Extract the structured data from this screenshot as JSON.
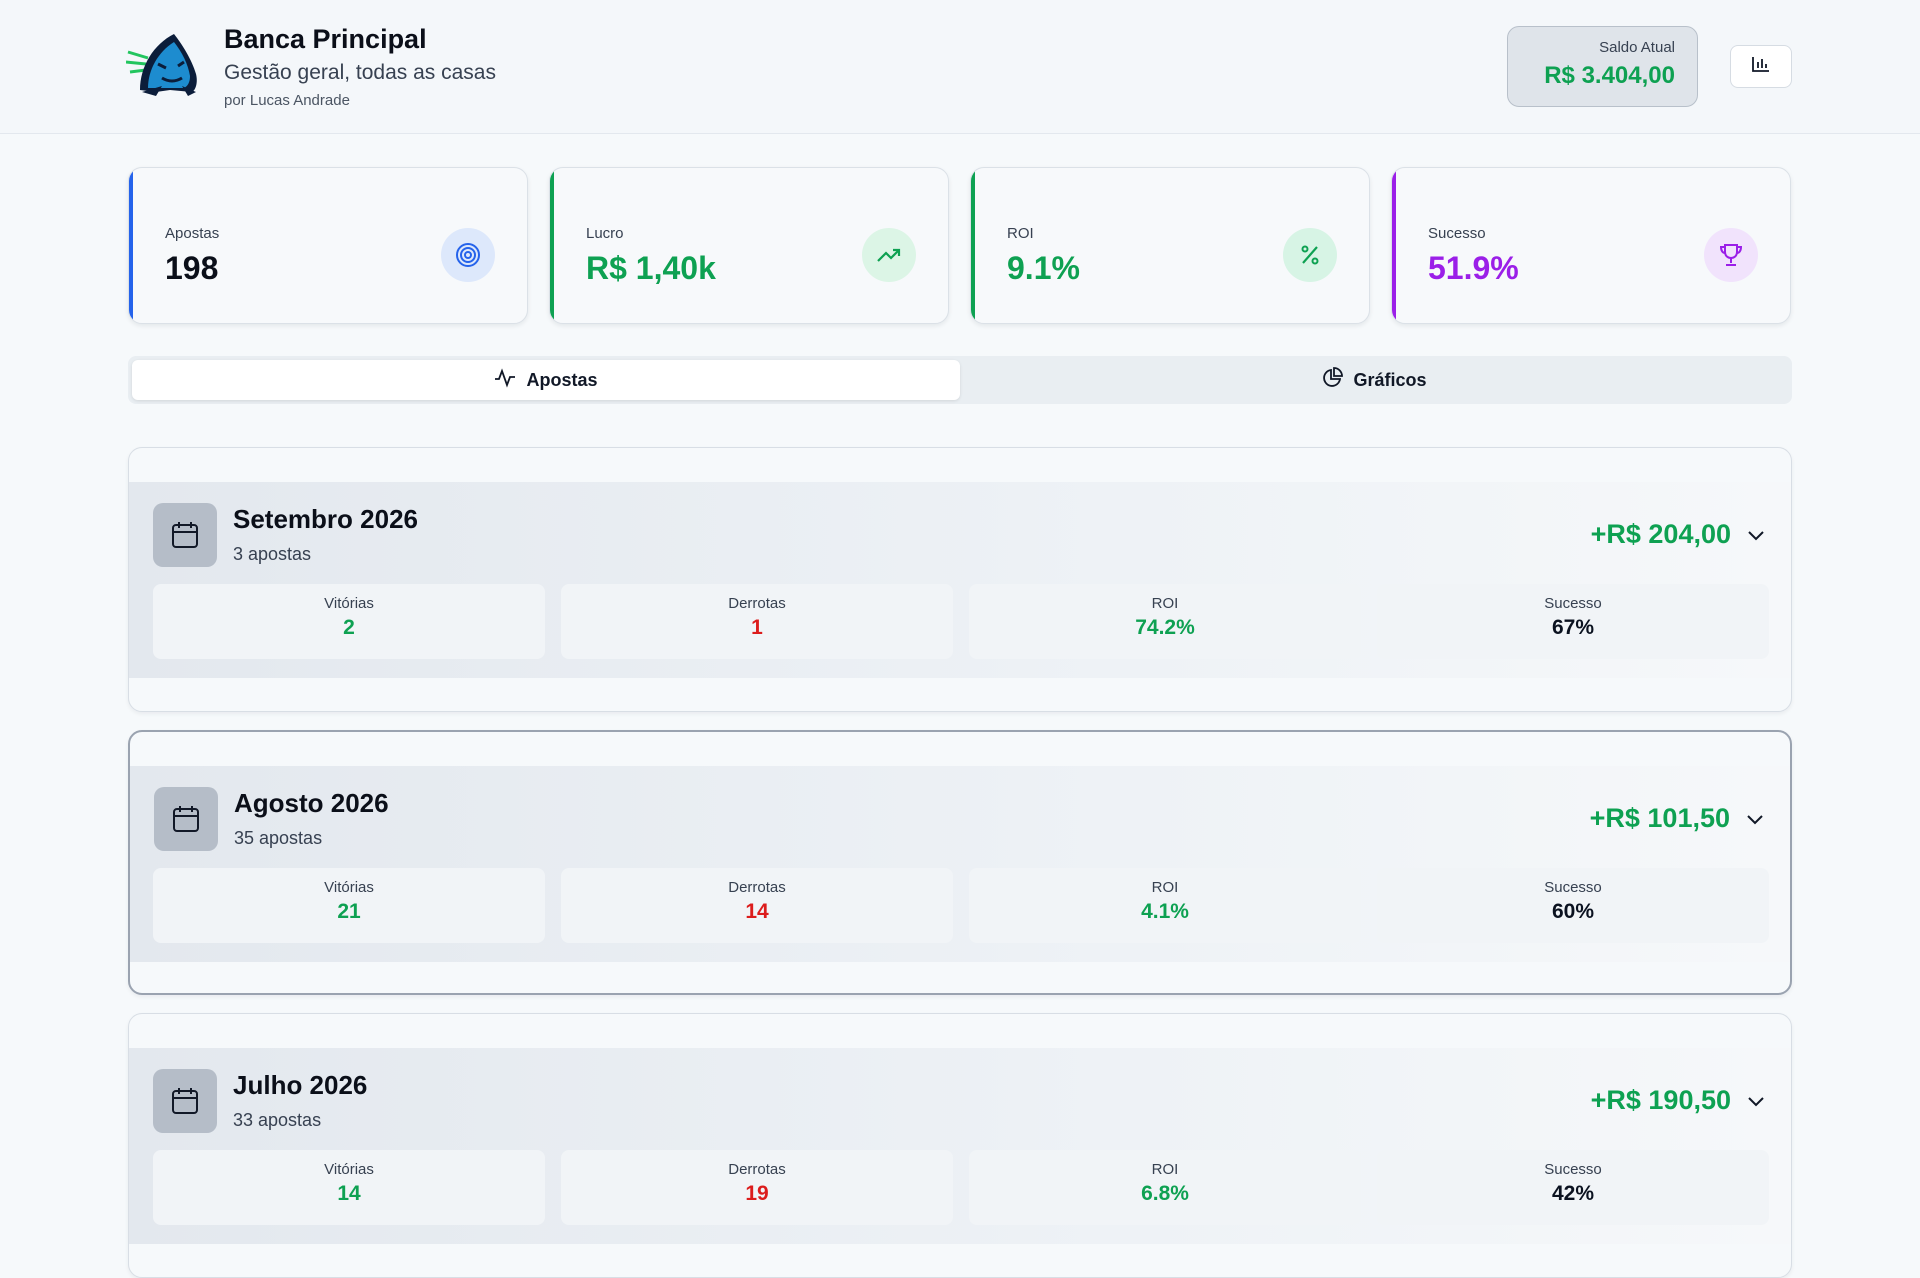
{
  "header": {
    "title": "Banca Principal",
    "subtitle": "Gestão geral, todas as casas",
    "author": "por Lucas Andrade",
    "balance_label": "Saldo Atual",
    "balance_value": "R$ 3.404,00"
  },
  "stats": [
    {
      "label": "Apostas",
      "value": "198",
      "icon": "target-icon",
      "color": "#2563eb"
    },
    {
      "label": "Lucro",
      "value": "R$ 1,40k",
      "icon": "trending-up-icon",
      "color": "#0ea152"
    },
    {
      "label": "ROI",
      "value": "9.1%",
      "icon": "percent-icon",
      "color": "#0ea152"
    },
    {
      "label": "Sucesso",
      "value": "51.9%",
      "icon": "trophy-icon",
      "color": "#9b1fe8"
    }
  ],
  "tabs": [
    {
      "label": "Apostas",
      "icon": "activity-icon",
      "active": true
    },
    {
      "label": "Gráficos",
      "icon": "pie-chart-icon",
      "active": false
    }
  ],
  "months": [
    {
      "title": "Setembro 2026",
      "count": "3 apostas",
      "total": "+R$ 204,00",
      "metrics": [
        {
          "label": "Vitórias",
          "value": "2"
        },
        {
          "label": "Derrotas",
          "value": "1"
        },
        {
          "label": "ROI",
          "value": "74.2%"
        },
        {
          "label": "Sucesso",
          "value": "67%"
        }
      ]
    },
    {
      "title": "Agosto 2026",
      "count": "35 apostas",
      "total": "+R$ 101,50",
      "metrics": [
        {
          "label": "Vitórias",
          "value": "21"
        },
        {
          "label": "Derrotas",
          "value": "14"
        },
        {
          "label": "ROI",
          "value": "4.1%"
        },
        {
          "label": "Sucesso",
          "value": "60%"
        }
      ]
    },
    {
      "title": "Julho 2026",
      "count": "33 apostas",
      "total": "+R$ 190,50",
      "metrics": [
        {
          "label": "Vitórias",
          "value": "14"
        },
        {
          "label": "Derrotas",
          "value": "19"
        },
        {
          "label": "ROI",
          "value": "6.8%"
        },
        {
          "label": "Sucesso",
          "value": "42%"
        }
      ]
    }
  ]
}
